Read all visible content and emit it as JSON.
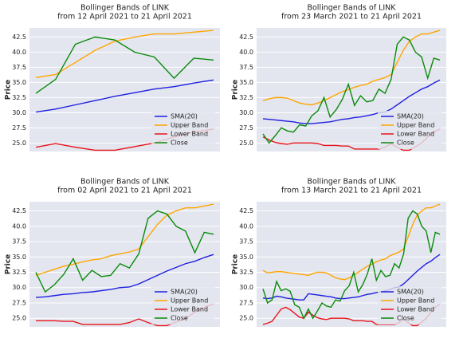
{
  "chart_data": [
    {
      "type": "line",
      "title": "Bollinger Bands of LINK",
      "subtitle": "from 12 April 2021 to 21 April 2021",
      "y_label": "Price",
      "categories": [
        null,
        null,
        null,
        null,
        null,
        null,
        null,
        null,
        null,
        null
      ],
      "series": [
        {
          "name": "SMA(20)",
          "color": "#1f1fe0",
          "values": [
            30.1,
            30.6,
            31.3,
            32.0,
            32.7,
            33.3,
            33.9,
            34.3,
            34.9,
            35.4
          ]
        },
        {
          "name": "Upper Band",
          "color": "#ffa500",
          "values": [
            35.8,
            36.3,
            38.3,
            40.3,
            41.8,
            42.5,
            43.0,
            43.0,
            43.3,
            43.6
          ]
        },
        {
          "name": "Lower Band",
          "color": "#e8141a",
          "values": [
            24.3,
            24.9,
            24.3,
            23.8,
            23.8,
            24.4,
            25.0,
            26.0,
            26.8,
            27.3
          ]
        },
        {
          "name": "Close",
          "color": "#0a8a0a",
          "values": [
            33.2,
            35.5,
            41.3,
            42.5,
            42.0,
            40.0,
            39.2,
            35.7,
            39.0,
            38.7
          ]
        }
      ],
      "ylim": [
        23.6,
        44.0
      ],
      "yticks": [
        {
          "value": 25,
          "label": "25.0"
        },
        {
          "value": 27.5,
          "label": "27.5"
        },
        {
          "value": 30,
          "label": "30.0"
        },
        {
          "value": 32.5,
          "label": "32.5"
        },
        {
          "value": 35,
          "label": "35.0"
        },
        {
          "value": 37.5,
          "label": "37.5"
        },
        {
          "value": 40,
          "label": "40.0"
        },
        {
          "value": 42.5,
          "label": "42.5"
        }
      ],
      "grid": true,
      "legend": "lower right"
    },
    {
      "type": "line",
      "title": "Bollinger Bands of LINK",
      "subtitle": "from 23 March 2021 to 21 April 2021",
      "y_label": "Price",
      "categories": [
        null,
        null,
        null,
        null,
        null,
        null,
        null,
        null,
        null,
        null,
        null,
        null,
        null,
        null,
        null,
        null,
        null,
        null,
        null,
        null,
        null,
        null,
        null,
        null,
        null,
        null,
        null,
        null,
        null,
        null
      ],
      "series": [
        {
          "name": "SMA(20)",
          "color": "#1f1fe0",
          "values": [
            29.0,
            28.9,
            28.8,
            28.7,
            28.6,
            28.5,
            28.3,
            28.2,
            28.2,
            28.3,
            28.4,
            28.5,
            28.7,
            28.9,
            29.0,
            29.2,
            29.3,
            29.5,
            29.7,
            30.0,
            30.1,
            30.6,
            31.3,
            32.0,
            32.7,
            33.3,
            33.9,
            34.3,
            34.9,
            35.4
          ]
        },
        {
          "name": "Upper Band",
          "color": "#ffa500",
          "values": [
            32.0,
            32.3,
            32.5,
            32.5,
            32.4,
            32.0,
            31.6,
            31.4,
            31.3,
            31.6,
            32.0,
            32.5,
            33.0,
            33.5,
            33.8,
            34.2,
            34.5,
            34.7,
            35.2,
            35.5,
            35.8,
            36.3,
            38.3,
            40.3,
            41.8,
            42.5,
            43.0,
            43.0,
            43.3,
            43.6
          ]
        },
        {
          "name": "Lower Band",
          "color": "#e8141a",
          "values": [
            26.0,
            25.5,
            25.1,
            24.9,
            24.8,
            25.0,
            25.0,
            25.0,
            25.0,
            24.9,
            24.6,
            24.6,
            24.6,
            24.5,
            24.5,
            24.0,
            24.0,
            24.0,
            24.0,
            24.0,
            24.3,
            24.9,
            24.3,
            23.8,
            23.8,
            24.4,
            25.0,
            26.0,
            26.8,
            27.3
          ]
        },
        {
          "name": "Close",
          "color": "#0a8a0a",
          "values": [
            26.5,
            25.0,
            26.2,
            27.5,
            27.0,
            26.8,
            28.0,
            27.8,
            29.5,
            30.3,
            32.5,
            29.3,
            30.5,
            32.2,
            34.7,
            31.2,
            32.8,
            31.8,
            32.0,
            33.9,
            33.2,
            35.5,
            41.3,
            42.5,
            42.0,
            40.0,
            39.2,
            35.7,
            39.0,
            38.7
          ]
        }
      ],
      "ylim": [
        23.6,
        44.0
      ],
      "yticks": [
        {
          "value": 25,
          "label": "25.0"
        },
        {
          "value": 27.5,
          "label": "27.5"
        },
        {
          "value": 30,
          "label": "30.0"
        },
        {
          "value": 32.5,
          "label": "32.5"
        },
        {
          "value": 35,
          "label": "35.0"
        },
        {
          "value": 37.5,
          "label": "37.5"
        },
        {
          "value": 40,
          "label": "40.0"
        },
        {
          "value": 42.5,
          "label": "42.5"
        }
      ],
      "grid": true,
      "legend": "lower right"
    },
    {
      "type": "line",
      "title": "Bollinger Bands of LINK",
      "subtitle": "from 02 April 2021 to 21 April 2021",
      "y_label": "Price",
      "categories": [
        null,
        null,
        null,
        null,
        null,
        null,
        null,
        null,
        null,
        null,
        null,
        null,
        null,
        null,
        null,
        null,
        null,
        null,
        null,
        null
      ],
      "series": [
        {
          "name": "SMA(20)",
          "color": "#1f1fe0",
          "values": [
            28.4,
            28.5,
            28.7,
            28.9,
            29.0,
            29.2,
            29.3,
            29.5,
            29.7,
            30.0,
            30.1,
            30.6,
            31.3,
            32.0,
            32.7,
            33.3,
            33.9,
            34.3,
            34.9,
            35.4
          ]
        },
        {
          "name": "Upper Band",
          "color": "#ffa500",
          "values": [
            32.0,
            32.5,
            33.0,
            33.5,
            33.8,
            34.2,
            34.5,
            34.7,
            35.2,
            35.5,
            35.8,
            36.3,
            38.3,
            40.3,
            41.8,
            42.5,
            43.0,
            43.0,
            43.3,
            43.6
          ]
        },
        {
          "name": "Lower Band",
          "color": "#e8141a",
          "values": [
            24.6,
            24.6,
            24.6,
            24.5,
            24.5,
            24.0,
            24.0,
            24.0,
            24.0,
            24.0,
            24.3,
            24.9,
            24.3,
            23.8,
            23.8,
            24.4,
            25.0,
            26.0,
            26.8,
            27.3
          ]
        },
        {
          "name": "Close",
          "color": "#0a8a0a",
          "values": [
            32.5,
            29.3,
            30.5,
            32.2,
            34.7,
            31.2,
            32.8,
            31.8,
            32.0,
            33.9,
            33.2,
            35.5,
            41.3,
            42.5,
            42.0,
            40.0,
            39.2,
            35.7,
            39.0,
            38.7
          ]
        }
      ],
      "ylim": [
        23.6,
        44.0
      ],
      "yticks": [
        {
          "value": 25,
          "label": "25.0"
        },
        {
          "value": 27.5,
          "label": "27.5"
        },
        {
          "value": 30,
          "label": "30.0"
        },
        {
          "value": 32.5,
          "label": "32.5"
        },
        {
          "value": 35,
          "label": "35.0"
        },
        {
          "value": 37.5,
          "label": "37.5"
        },
        {
          "value": 40,
          "label": "40.0"
        },
        {
          "value": 42.5,
          "label": "42.5"
        }
      ],
      "grid": true,
      "legend": "lower right"
    },
    {
      "type": "line",
      "title": "Bollinger Bands of LINK",
      "subtitle": "from 13 March 2021 to 21 April 2021",
      "y_label": "Price",
      "categories": [
        null,
        null,
        null,
        null,
        null,
        null,
        null,
        null,
        null,
        null,
        null,
        null,
        null,
        null,
        null,
        null,
        null,
        null,
        null,
        null,
        null,
        null,
        null,
        null,
        null,
        null,
        null,
        null,
        null,
        null,
        null,
        null,
        null,
        null,
        null,
        null,
        null,
        null,
        null,
        null
      ],
      "series": [
        {
          "name": "SMA(20)",
          "color": "#1f1fe0",
          "values": [
            28.3,
            28.2,
            28.3,
            28.6,
            28.5,
            28.3,
            28.2,
            28.1,
            28.0,
            28.0,
            29.0,
            28.9,
            28.8,
            28.7,
            28.6,
            28.5,
            28.3,
            28.2,
            28.2,
            28.3,
            28.4,
            28.5,
            28.7,
            28.9,
            29.0,
            29.2,
            29.3,
            29.5,
            29.7,
            30.0,
            30.1,
            30.6,
            31.3,
            32.0,
            32.7,
            33.3,
            33.9,
            34.3,
            34.9,
            35.4
          ]
        },
        {
          "name": "Upper Band",
          "color": "#ffa500",
          "values": [
            32.8,
            32.4,
            32.5,
            32.6,
            32.6,
            32.5,
            32.4,
            32.3,
            32.2,
            32.1,
            32.0,
            32.3,
            32.5,
            32.5,
            32.4,
            32.0,
            31.6,
            31.4,
            31.3,
            31.6,
            32.0,
            32.5,
            33.0,
            33.5,
            33.8,
            34.2,
            34.5,
            34.7,
            35.2,
            35.5,
            35.8,
            36.3,
            38.3,
            40.3,
            41.8,
            42.5,
            43.0,
            43.0,
            43.3,
            43.6
          ]
        },
        {
          "name": "Lower Band",
          "color": "#e8141a",
          "values": [
            24.0,
            24.2,
            24.5,
            25.5,
            26.5,
            26.8,
            26.4,
            25.8,
            25.2,
            25.0,
            26.0,
            25.5,
            25.1,
            24.9,
            24.8,
            25.0,
            25.0,
            25.0,
            25.0,
            24.9,
            24.6,
            24.6,
            24.6,
            24.5,
            24.5,
            24.0,
            24.0,
            24.0,
            24.0,
            24.0,
            24.3,
            24.9,
            24.3,
            23.8,
            23.8,
            24.4,
            25.0,
            26.0,
            26.8,
            27.3
          ]
        },
        {
          "name": "Close",
          "color": "#0a8a0a",
          "values": [
            29.8,
            27.5,
            28.0,
            31.0,
            29.5,
            29.8,
            29.4,
            27.2,
            26.8,
            25.0,
            26.5,
            25.0,
            26.2,
            27.5,
            27.0,
            26.8,
            28.0,
            27.8,
            29.5,
            30.3,
            32.5,
            29.3,
            30.5,
            32.2,
            34.7,
            31.2,
            32.8,
            31.8,
            32.0,
            33.9,
            33.2,
            35.5,
            41.3,
            42.5,
            42.0,
            40.0,
            39.2,
            35.7,
            39.0,
            38.7
          ]
        }
      ],
      "ylim": [
        23.6,
        44.0
      ],
      "yticks": [
        {
          "value": 25,
          "label": "25.0"
        },
        {
          "value": 27.5,
          "label": "27.5"
        },
        {
          "value": 30,
          "label": "30.0"
        },
        {
          "value": 32.5,
          "label": "32.5"
        },
        {
          "value": 35,
          "label": "35.0"
        },
        {
          "value": 37.5,
          "label": "37.5"
        },
        {
          "value": 40,
          "label": "40.0"
        },
        {
          "value": 42.5,
          "label": "42.5"
        }
      ],
      "grid": true,
      "legend": "lower right"
    }
  ]
}
